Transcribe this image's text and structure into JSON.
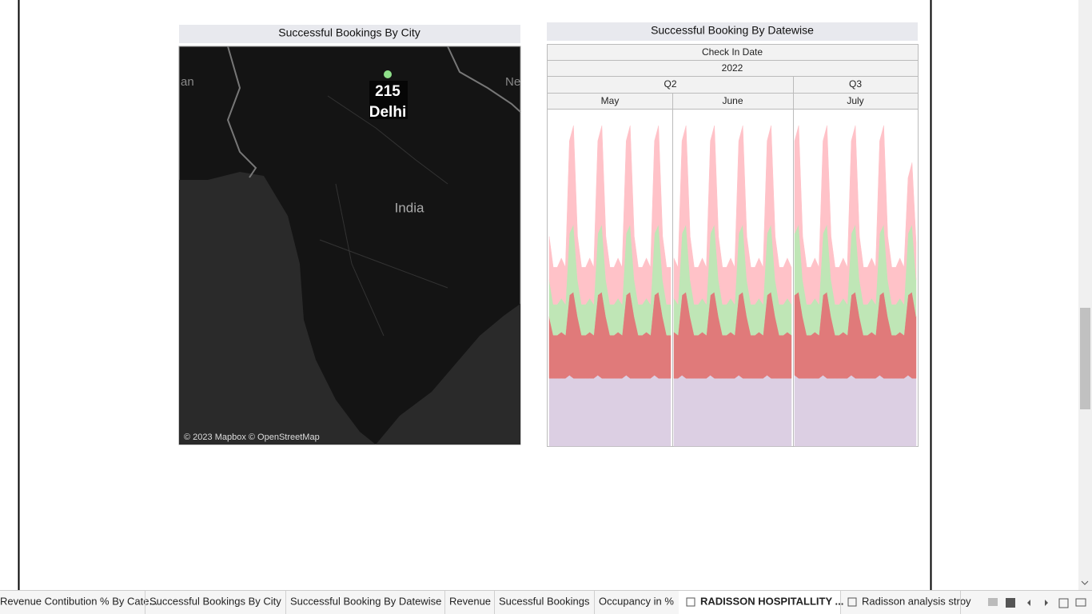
{
  "chart_data": [
    {
      "type": "map",
      "title": "Successful Bookings By City",
      "labels": [
        "an",
        "Ne",
        "India"
      ],
      "categories": [
        "Delhi"
      ],
      "values": [
        215
      ],
      "color": "#8fe08a",
      "attribution": "© 2023 Mapbox © OpenStreetMap"
    },
    {
      "type": "stacked-area",
      "title": "Successful Booking By Datewise",
      "header": "Check In Date",
      "year": "2022",
      "quarters": [
        {
          "label": "Q2",
          "months": [
            {
              "label": "May",
              "series": [
                {
                  "color": "#dccfe3",
                  "values": [
                    22,
                    22,
                    22,
                    22,
                    22,
                    23,
                    22,
                    22,
                    22,
                    22,
                    22,
                    22,
                    23,
                    22,
                    22,
                    22,
                    22,
                    22,
                    22,
                    23,
                    22,
                    22,
                    22,
                    22,
                    22,
                    22,
                    23,
                    22,
                    22,
                    22,
                    22
                  ]
                },
                {
                  "color": "#e07a7a",
                  "values": [
                    20,
                    14,
                    14,
                    15,
                    14,
                    26,
                    28,
                    20,
                    14,
                    14,
                    15,
                    14,
                    26,
                    28,
                    20,
                    14,
                    14,
                    15,
                    14,
                    26,
                    28,
                    20,
                    14,
                    14,
                    15,
                    14,
                    26,
                    28,
                    20,
                    14,
                    14
                  ]
                },
                {
                  "color": "#bfe6b6",
                  "values": [
                    12,
                    10,
                    10,
                    11,
                    10,
                    20,
                    22,
                    12,
                    10,
                    10,
                    11,
                    10,
                    20,
                    22,
                    12,
                    10,
                    10,
                    11,
                    10,
                    20,
                    22,
                    12,
                    10,
                    10,
                    11,
                    10,
                    20,
                    22,
                    12,
                    10,
                    10
                  ]
                },
                {
                  "color": "#ffc2c8",
                  "values": [
                    14,
                    12,
                    12,
                    13,
                    12,
                    30,
                    32,
                    14,
                    12,
                    12,
                    13,
                    12,
                    30,
                    32,
                    14,
                    12,
                    12,
                    13,
                    12,
                    30,
                    32,
                    14,
                    12,
                    12,
                    13,
                    12,
                    30,
                    32,
                    14,
                    12,
                    12
                  ]
                }
              ]
            },
            {
              "label": "June",
              "series": [
                {
                  "color": "#dccfe3",
                  "values": [
                    22,
                    22,
                    23,
                    22,
                    22,
                    22,
                    22,
                    22,
                    22,
                    23,
                    22,
                    22,
                    22,
                    22,
                    22,
                    22,
                    23,
                    22,
                    22,
                    22,
                    22,
                    22,
                    22,
                    23,
                    22,
                    22,
                    22,
                    22,
                    22,
                    22
                  ]
                },
                {
                  "color": "#e07a7a",
                  "values": [
                    15,
                    14,
                    26,
                    28,
                    20,
                    14,
                    14,
                    15,
                    14,
                    26,
                    28,
                    20,
                    14,
                    14,
                    15,
                    14,
                    26,
                    28,
                    20,
                    14,
                    14,
                    15,
                    14,
                    26,
                    28,
                    20,
                    14,
                    14,
                    15,
                    14
                  ]
                },
                {
                  "color": "#bfe6b6",
                  "values": [
                    11,
                    10,
                    20,
                    22,
                    12,
                    10,
                    10,
                    11,
                    10,
                    20,
                    22,
                    12,
                    10,
                    10,
                    11,
                    10,
                    20,
                    22,
                    12,
                    10,
                    10,
                    11,
                    10,
                    20,
                    22,
                    12,
                    10,
                    10,
                    11,
                    10
                  ]
                },
                {
                  "color": "#ffc2c8",
                  "values": [
                    13,
                    12,
                    30,
                    32,
                    14,
                    12,
                    12,
                    13,
                    12,
                    30,
                    32,
                    14,
                    12,
                    12,
                    13,
                    12,
                    30,
                    32,
                    14,
                    12,
                    12,
                    13,
                    12,
                    30,
                    32,
                    14,
                    12,
                    12,
                    13,
                    12
                  ]
                }
              ]
            }
          ]
        },
        {
          "label": "Q3",
          "months": [
            {
              "label": "July",
              "series": [
                {
                  "color": "#dccfe3",
                  "values": [
                    23,
                    22,
                    22,
                    22,
                    22,
                    22,
                    22,
                    23,
                    22,
                    22,
                    22,
                    22,
                    22,
                    22,
                    23,
                    22,
                    22,
                    22,
                    22,
                    22,
                    22,
                    23,
                    22,
                    22,
                    22,
                    22,
                    22,
                    22,
                    23,
                    22,
                    22
                  ]
                },
                {
                  "color": "#e07a7a",
                  "values": [
                    26,
                    28,
                    20,
                    14,
                    14,
                    15,
                    14,
                    26,
                    28,
                    20,
                    14,
                    14,
                    15,
                    14,
                    26,
                    28,
                    20,
                    14,
                    14,
                    15,
                    14,
                    26,
                    28,
                    20,
                    14,
                    14,
                    15,
                    14,
                    26,
                    28,
                    20
                  ]
                },
                {
                  "color": "#bfe6b6",
                  "values": [
                    20,
                    22,
                    12,
                    10,
                    10,
                    11,
                    10,
                    20,
                    22,
                    12,
                    10,
                    10,
                    11,
                    10,
                    20,
                    22,
                    12,
                    10,
                    10,
                    11,
                    10,
                    20,
                    22,
                    12,
                    10,
                    10,
                    11,
                    10,
                    20,
                    22,
                    12
                  ]
                },
                {
                  "color": "#ffc2c8",
                  "values": [
                    30,
                    32,
                    14,
                    12,
                    12,
                    13,
                    12,
                    30,
                    32,
                    14,
                    12,
                    12,
                    13,
                    12,
                    30,
                    32,
                    14,
                    12,
                    12,
                    13,
                    12,
                    30,
                    32,
                    14,
                    12,
                    12,
                    13,
                    12,
                    18,
                    20,
                    12
                  ]
                }
              ]
            }
          ]
        }
      ]
    }
  ],
  "tabs": [
    "Revenue Contibution % By Cate...",
    "Successful Bookings By City",
    "Successful Booking By Datewise",
    "Revenue",
    "Sucessful Bookings",
    "Occupancy in %",
    "RADISSON HOSPITALLITY ...",
    "Radisson analysis stroy"
  ],
  "active_tab": 6
}
